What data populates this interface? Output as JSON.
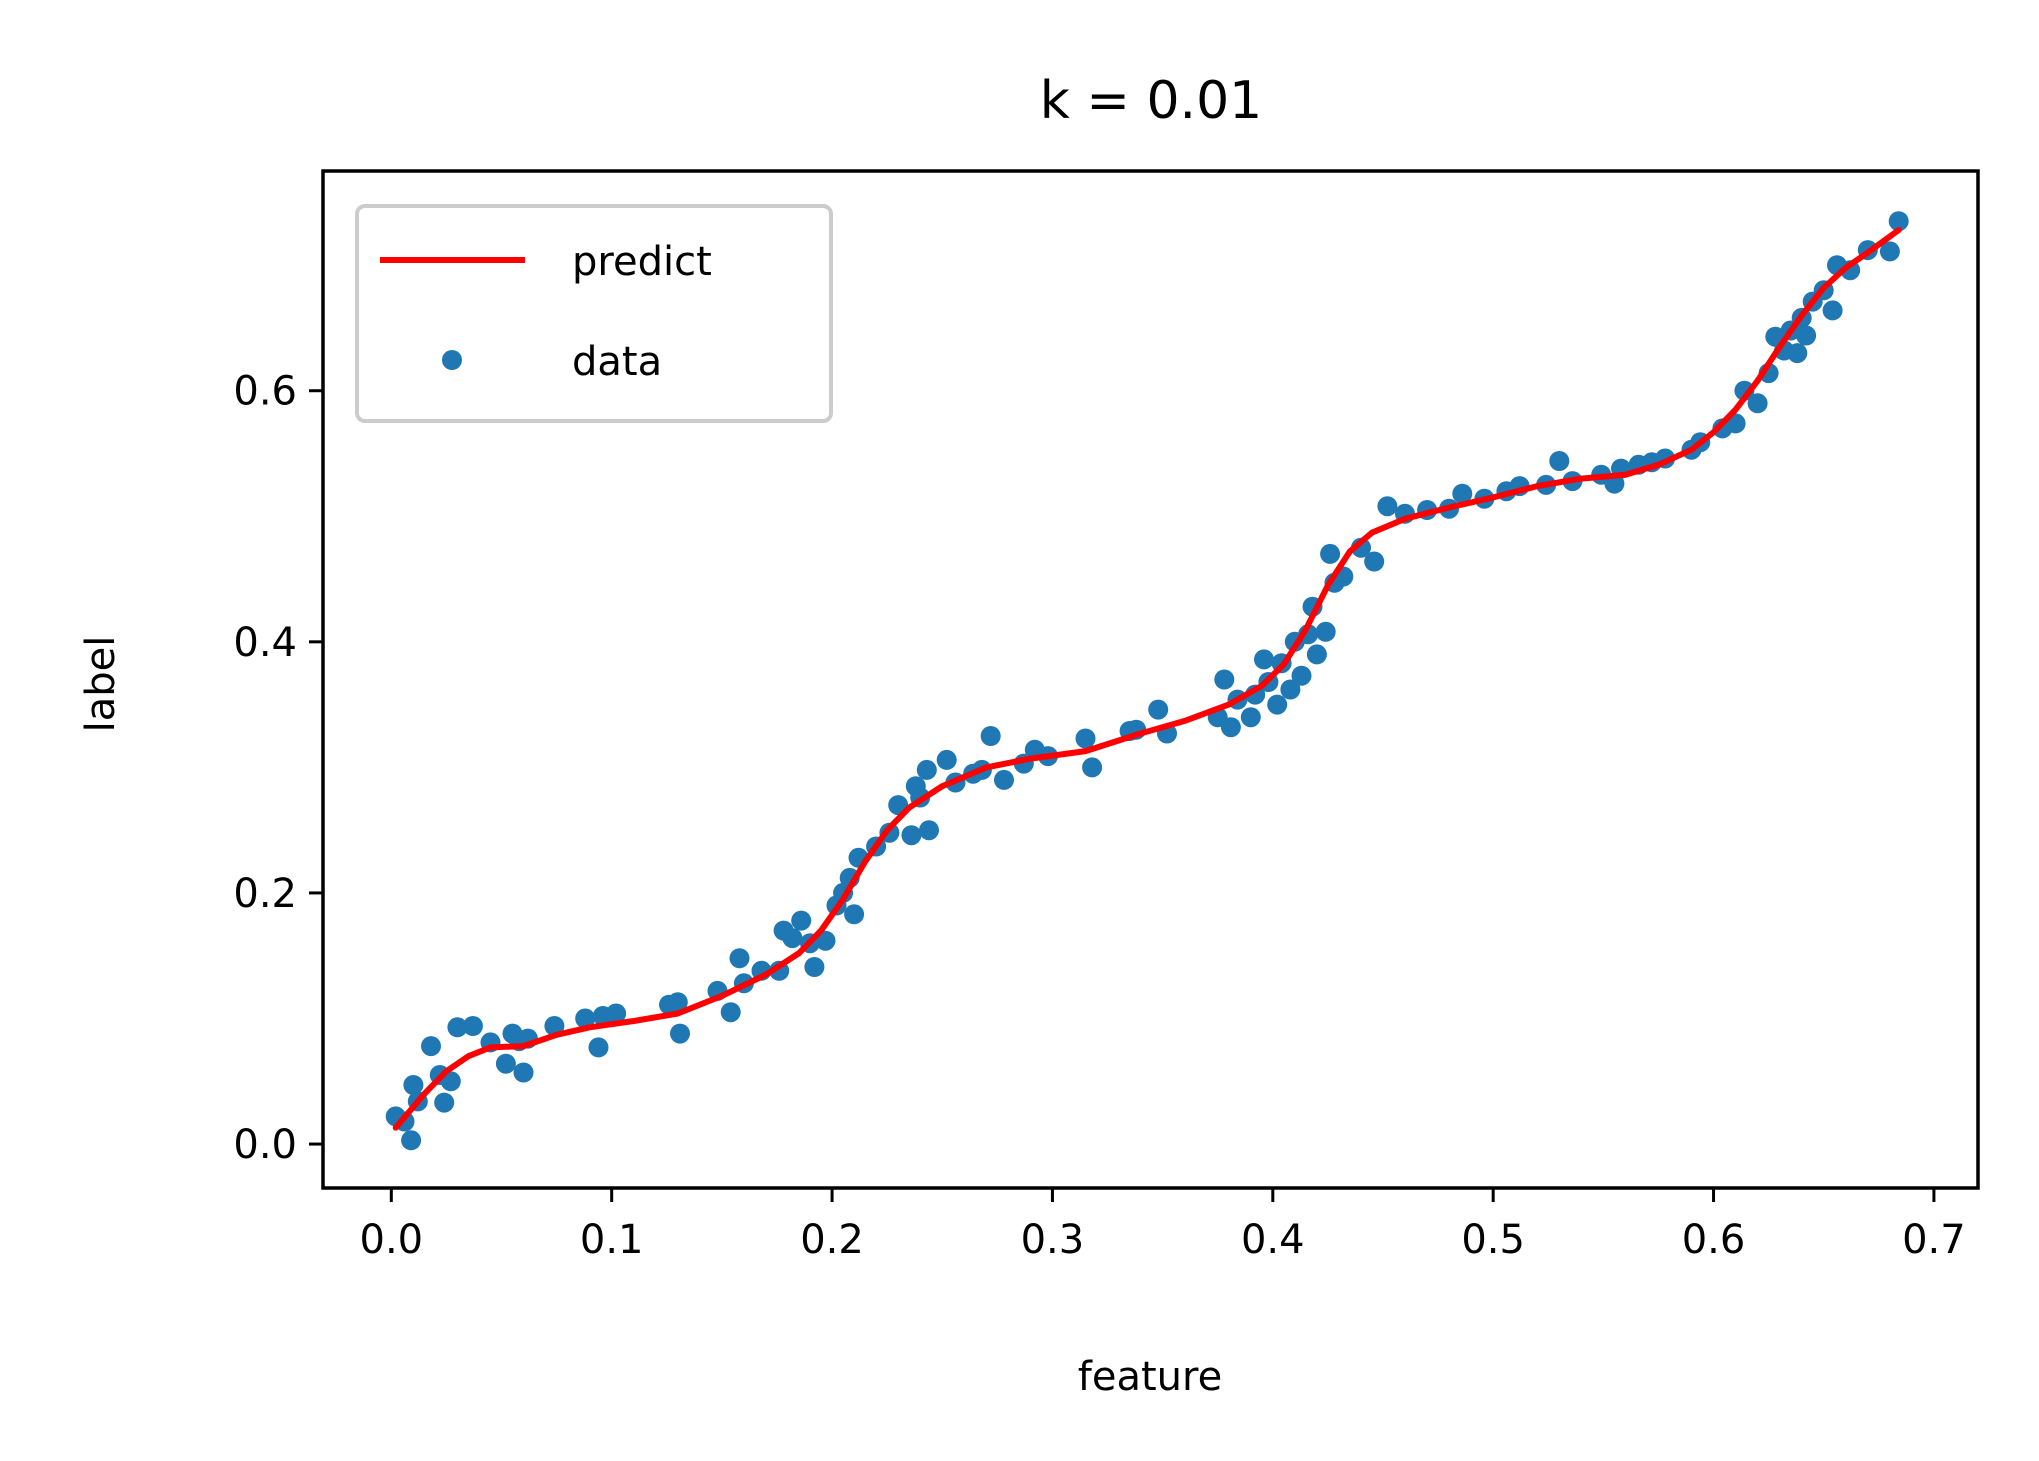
{
  "chart_data": {
    "type": "scatter",
    "title": "k = 0.01",
    "xlabel": "feature",
    "ylabel": "label",
    "xlim": [
      -0.031,
      0.72
    ],
    "ylim": [
      -0.035,
      0.775
    ],
    "xticks": [
      0.0,
      0.1,
      0.2,
      0.3,
      0.4,
      0.5,
      0.6,
      0.7
    ],
    "xtick_labels": [
      "0.0",
      "0.1",
      "0.2",
      "0.3",
      "0.4",
      "0.5",
      "0.6",
      "0.7"
    ],
    "yticks": [
      0.0,
      0.2,
      0.4,
      0.6
    ],
    "ytick_labels": [
      "0.0",
      "0.2",
      "0.4",
      "0.6"
    ],
    "grid": false,
    "legend_position": "top-left",
    "series": [
      {
        "name": "predict",
        "kind": "line",
        "color": "#ff0000",
        "points": [
          [
            0.002,
            0.013
          ],
          [
            0.015,
            0.04
          ],
          [
            0.025,
            0.058
          ],
          [
            0.035,
            0.07
          ],
          [
            0.045,
            0.077
          ],
          [
            0.06,
            0.078
          ],
          [
            0.075,
            0.087
          ],
          [
            0.09,
            0.093
          ],
          [
            0.11,
            0.098
          ],
          [
            0.13,
            0.104
          ],
          [
            0.15,
            0.118
          ],
          [
            0.17,
            0.135
          ],
          [
            0.185,
            0.152
          ],
          [
            0.195,
            0.17
          ],
          [
            0.205,
            0.195
          ],
          [
            0.215,
            0.225
          ],
          [
            0.225,
            0.25
          ],
          [
            0.235,
            0.268
          ],
          [
            0.25,
            0.285
          ],
          [
            0.27,
            0.3
          ],
          [
            0.29,
            0.307
          ],
          [
            0.315,
            0.313
          ],
          [
            0.34,
            0.327
          ],
          [
            0.36,
            0.337
          ],
          [
            0.38,
            0.35
          ],
          [
            0.395,
            0.365
          ],
          [
            0.405,
            0.382
          ],
          [
            0.415,
            0.41
          ],
          [
            0.425,
            0.445
          ],
          [
            0.435,
            0.472
          ],
          [
            0.445,
            0.487
          ],
          [
            0.46,
            0.498
          ],
          [
            0.48,
            0.507
          ],
          [
            0.5,
            0.515
          ],
          [
            0.52,
            0.524
          ],
          [
            0.54,
            0.53
          ],
          [
            0.56,
            0.533
          ],
          [
            0.575,
            0.541
          ],
          [
            0.59,
            0.553
          ],
          [
            0.6,
            0.567
          ],
          [
            0.61,
            0.585
          ],
          [
            0.62,
            0.608
          ],
          [
            0.63,
            0.635
          ],
          [
            0.64,
            0.66
          ],
          [
            0.65,
            0.682
          ],
          [
            0.66,
            0.698
          ],
          [
            0.67,
            0.71
          ],
          [
            0.684,
            0.728
          ]
        ]
      },
      {
        "name": "data",
        "kind": "scatter",
        "color": "#1f77b4",
        "points": [
          [
            0.002,
            0.022
          ],
          [
            0.006,
            0.018
          ],
          [
            0.009,
            0.003
          ],
          [
            0.01,
            0.047
          ],
          [
            0.012,
            0.034
          ],
          [
            0.018,
            0.078
          ],
          [
            0.022,
            0.055
          ],
          [
            0.024,
            0.033
          ],
          [
            0.027,
            0.05
          ],
          [
            0.03,
            0.093
          ],
          [
            0.037,
            0.094
          ],
          [
            0.045,
            0.081
          ],
          [
            0.052,
            0.064
          ],
          [
            0.055,
            0.088
          ],
          [
            0.058,
            0.082
          ],
          [
            0.06,
            0.057
          ],
          [
            0.062,
            0.084
          ],
          [
            0.074,
            0.094
          ],
          [
            0.088,
            0.1
          ],
          [
            0.094,
            0.077
          ],
          [
            0.096,
            0.102
          ],
          [
            0.102,
            0.104
          ],
          [
            0.126,
            0.111
          ],
          [
            0.13,
            0.113
          ],
          [
            0.131,
            0.088
          ],
          [
            0.148,
            0.122
          ],
          [
            0.154,
            0.105
          ],
          [
            0.158,
            0.148
          ],
          [
            0.16,
            0.128
          ],
          [
            0.168,
            0.138
          ],
          [
            0.176,
            0.138
          ],
          [
            0.178,
            0.17
          ],
          [
            0.182,
            0.164
          ],
          [
            0.186,
            0.178
          ],
          [
            0.19,
            0.16
          ],
          [
            0.192,
            0.141
          ],
          [
            0.197,
            0.162
          ],
          [
            0.202,
            0.19
          ],
          [
            0.205,
            0.2
          ],
          [
            0.208,
            0.212
          ],
          [
            0.21,
            0.183
          ],
          [
            0.212,
            0.228
          ],
          [
            0.22,
            0.237
          ],
          [
            0.226,
            0.248
          ],
          [
            0.23,
            0.27
          ],
          [
            0.236,
            0.246
          ],
          [
            0.238,
            0.285
          ],
          [
            0.24,
            0.276
          ],
          [
            0.243,
            0.298
          ],
          [
            0.244,
            0.25
          ],
          [
            0.252,
            0.306
          ],
          [
            0.256,
            0.288
          ],
          [
            0.264,
            0.295
          ],
          [
            0.268,
            0.298
          ],
          [
            0.272,
            0.325
          ],
          [
            0.278,
            0.29
          ],
          [
            0.287,
            0.303
          ],
          [
            0.292,
            0.314
          ],
          [
            0.298,
            0.309
          ],
          [
            0.315,
            0.323
          ],
          [
            0.318,
            0.3
          ],
          [
            0.335,
            0.329
          ],
          [
            0.338,
            0.33
          ],
          [
            0.348,
            0.346
          ],
          [
            0.352,
            0.327
          ],
          [
            0.375,
            0.34
          ],
          [
            0.378,
            0.37
          ],
          [
            0.381,
            0.332
          ],
          [
            0.384,
            0.354
          ],
          [
            0.39,
            0.34
          ],
          [
            0.392,
            0.358
          ],
          [
            0.396,
            0.386
          ],
          [
            0.398,
            0.368
          ],
          [
            0.402,
            0.35
          ],
          [
            0.404,
            0.383
          ],
          [
            0.408,
            0.362
          ],
          [
            0.41,
            0.4
          ],
          [
            0.413,
            0.373
          ],
          [
            0.416,
            0.406
          ],
          [
            0.418,
            0.428
          ],
          [
            0.42,
            0.39
          ],
          [
            0.424,
            0.408
          ],
          [
            0.426,
            0.47
          ],
          [
            0.428,
            0.447
          ],
          [
            0.432,
            0.452
          ],
          [
            0.44,
            0.475
          ],
          [
            0.446,
            0.464
          ],
          [
            0.452,
            0.508
          ],
          [
            0.46,
            0.502
          ],
          [
            0.47,
            0.505
          ],
          [
            0.48,
            0.506
          ],
          [
            0.486,
            0.518
          ],
          [
            0.496,
            0.514
          ],
          [
            0.506,
            0.52
          ],
          [
            0.512,
            0.524
          ],
          [
            0.524,
            0.525
          ],
          [
            0.53,
            0.544
          ],
          [
            0.536,
            0.528
          ],
          [
            0.549,
            0.533
          ],
          [
            0.555,
            0.526
          ],
          [
            0.558,
            0.538
          ],
          [
            0.566,
            0.541
          ],
          [
            0.572,
            0.543
          ],
          [
            0.578,
            0.546
          ],
          [
            0.59,
            0.553
          ],
          [
            0.594,
            0.559
          ],
          [
            0.604,
            0.57
          ],
          [
            0.61,
            0.574
          ],
          [
            0.614,
            0.6
          ],
          [
            0.62,
            0.59
          ],
          [
            0.625,
            0.614
          ],
          [
            0.628,
            0.643
          ],
          [
            0.632,
            0.632
          ],
          [
            0.635,
            0.648
          ],
          [
            0.638,
            0.63
          ],
          [
            0.64,
            0.658
          ],
          [
            0.642,
            0.644
          ],
          [
            0.645,
            0.671
          ],
          [
            0.65,
            0.68
          ],
          [
            0.654,
            0.664
          ],
          [
            0.656,
            0.7
          ],
          [
            0.662,
            0.696
          ],
          [
            0.67,
            0.712
          ],
          [
            0.68,
            0.711
          ],
          [
            0.684,
            0.735
          ]
        ]
      }
    ]
  }
}
